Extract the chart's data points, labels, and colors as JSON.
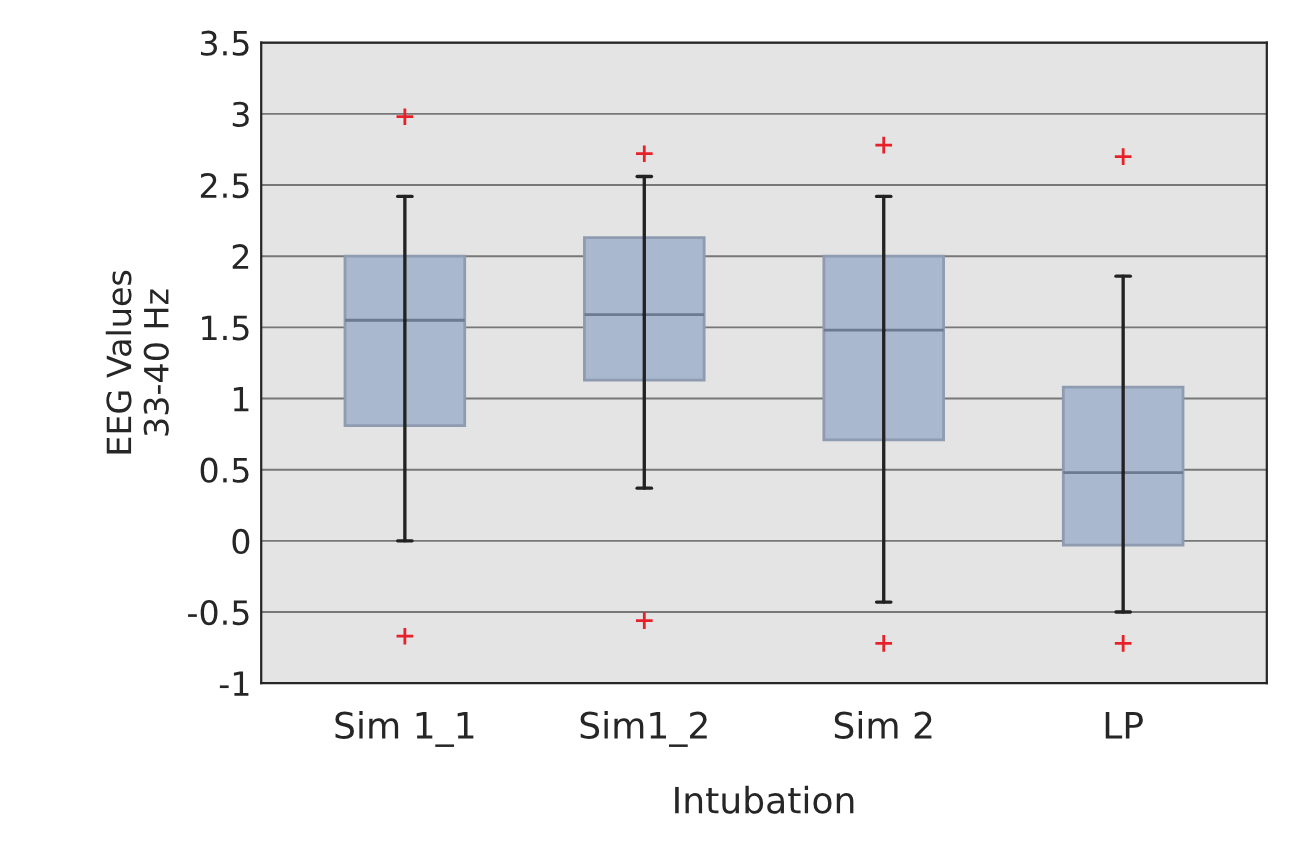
{
  "chart_data": {
    "type": "box",
    "xlabel": "Intubation",
    "ylabel": "EEG Values\n33-40 Hz",
    "categories": [
      "Sim 1_1",
      "Sim1_2",
      "Sim 2",
      "LP"
    ],
    "boxes": [
      {
        "low": 0.0,
        "q1": 0.81,
        "median": 1.55,
        "q3": 2.0,
        "high": 2.42,
        "outliers": [
          2.98,
          -0.67
        ]
      },
      {
        "low": 0.37,
        "q1": 1.13,
        "median": 1.59,
        "q3": 2.13,
        "high": 2.56,
        "outliers": [
          2.72,
          -0.56
        ]
      },
      {
        "low": -0.43,
        "q1": 0.71,
        "median": 1.48,
        "q3": 2.0,
        "high": 2.42,
        "outliers": [
          2.78,
          -0.72
        ]
      },
      {
        "low": -0.5,
        "q1": -0.03,
        "median": 0.48,
        "q3": 1.08,
        "high": 1.86,
        "outliers": [
          2.7,
          -0.72
        ]
      }
    ],
    "color": "#a9b8cf",
    "ylim": [
      -1,
      3.5
    ],
    "yticks": [
      -1,
      -0.5,
      0,
      0.5,
      1,
      1.5,
      2,
      2.5,
      3,
      3.5
    ],
    "grid": "y"
  }
}
